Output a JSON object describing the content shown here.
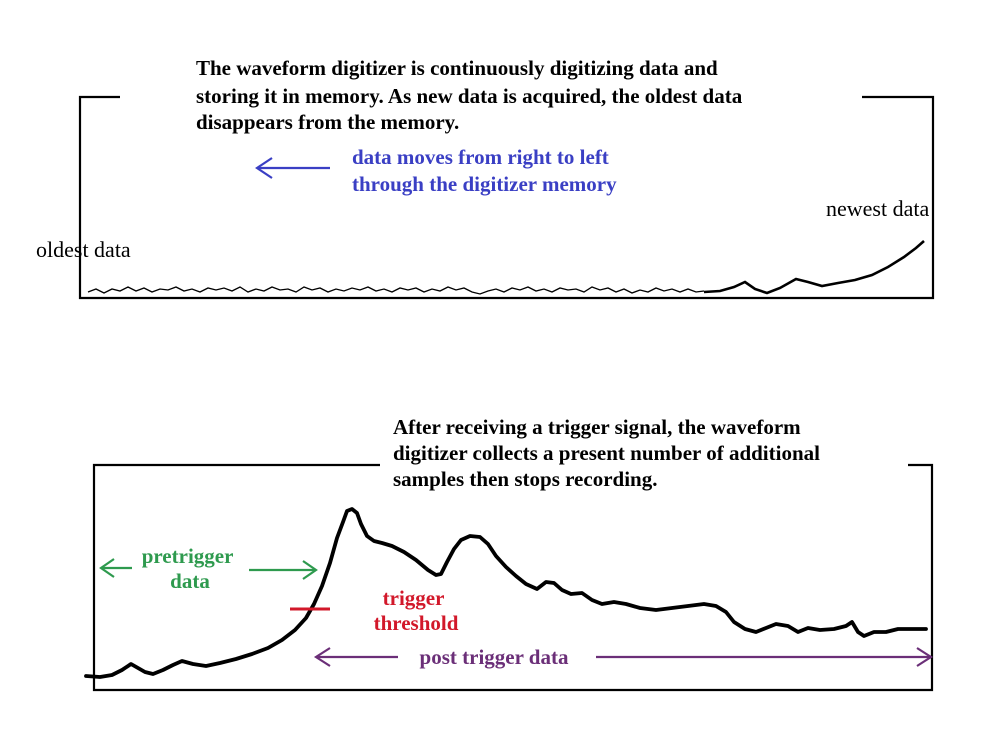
{
  "top_panel": {
    "caption_lines": [
      "The waveform digitizer is continuously digitizing data and",
      "storing it in memory.  As new data is acquired, the oldest data",
      "disappears from the memory."
    ],
    "direction_note_lines": [
      "data moves from right to left",
      "through the digitizer memory"
    ],
    "oldest_label": "oldest data",
    "newest_label": "newest data"
  },
  "bottom_panel": {
    "caption_lines": [
      "After receiving a trigger signal, the waveform",
      "digitizer collects a present number of additional",
      "samples then stops recording."
    ],
    "pretrigger_label_lines": [
      "pretrigger",
      "data"
    ],
    "trigger_label_lines": [
      "trigger",
      "threshold"
    ],
    "post_trigger_label": "post trigger data"
  },
  "colors": {
    "ink": "#000000",
    "blue_note": "#3a3fc4",
    "green_label": "#2e9a4e",
    "red_threshold": "#d2182a",
    "purple_label": "#6b2f78"
  }
}
